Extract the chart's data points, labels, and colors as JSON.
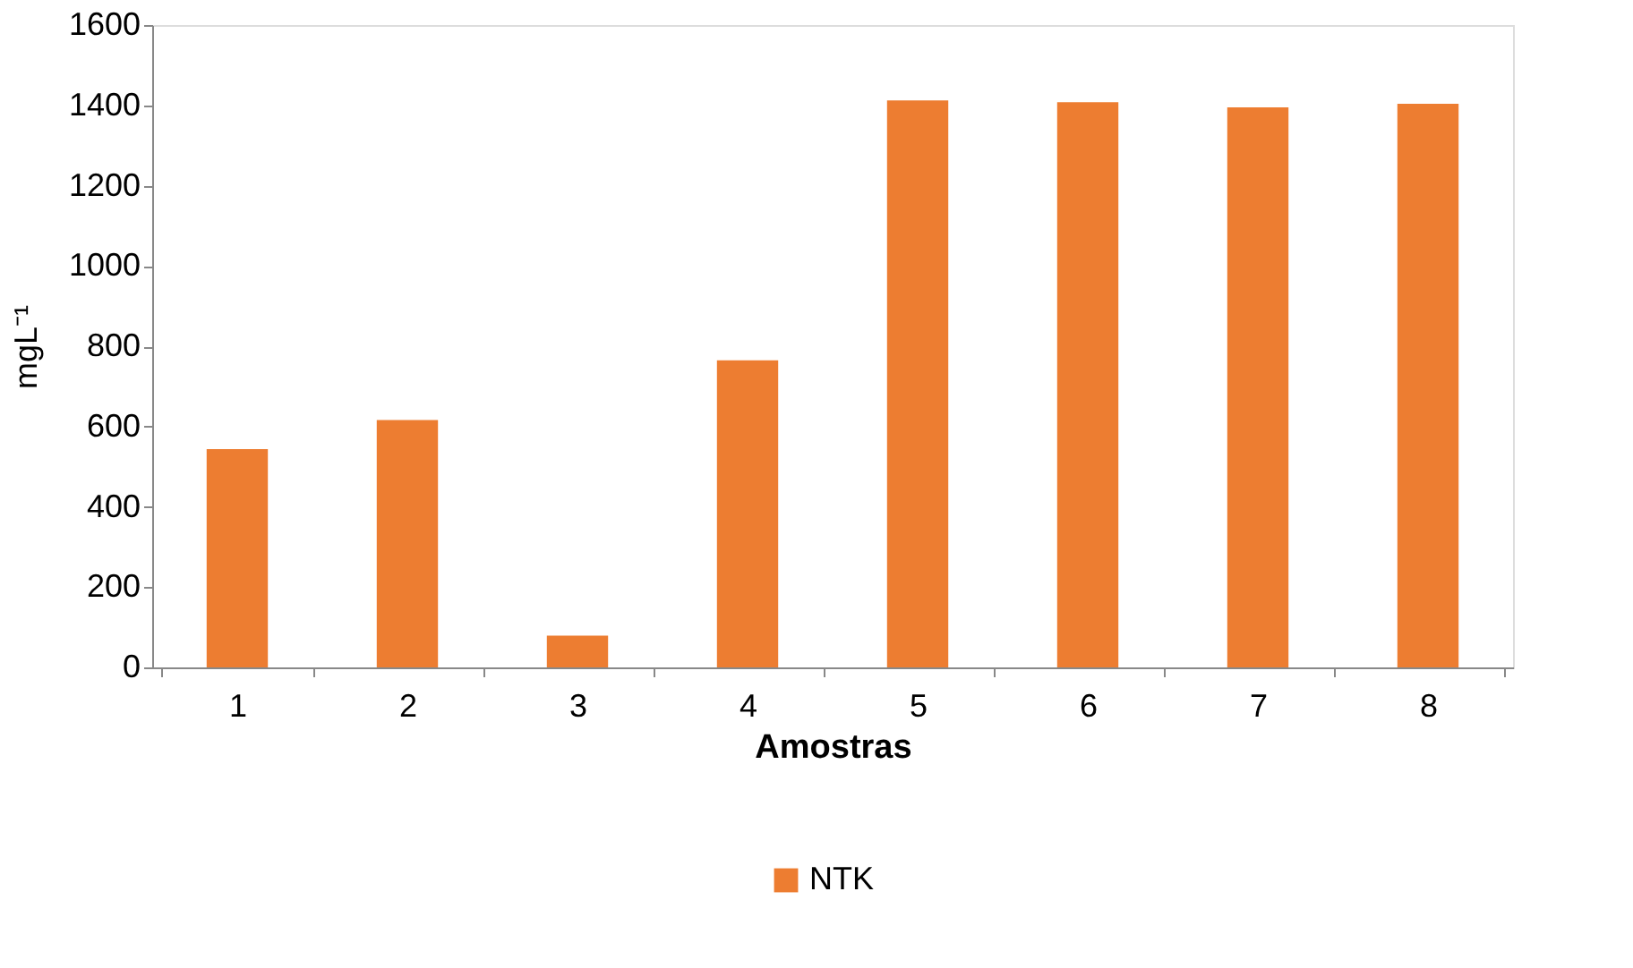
{
  "chart_data": {
    "type": "bar",
    "xlabel": "Amostras",
    "ylabel": "mgL⁻¹",
    "categories": [
      "1",
      "2",
      "3",
      "4",
      "5",
      "6",
      "7",
      "8"
    ],
    "series": [
      {
        "name": "NTK",
        "color": "#ed7d31",
        "values": [
          544,
          616,
          79,
          765,
          1412,
          1408,
          1395,
          1404
        ]
      }
    ],
    "ylim": [
      0,
      1600
    ],
    "yticks": [
      0,
      200,
      400,
      600,
      800,
      1000,
      1200,
      1400,
      1600
    ],
    "grid": false,
    "legend": "bottom"
  }
}
